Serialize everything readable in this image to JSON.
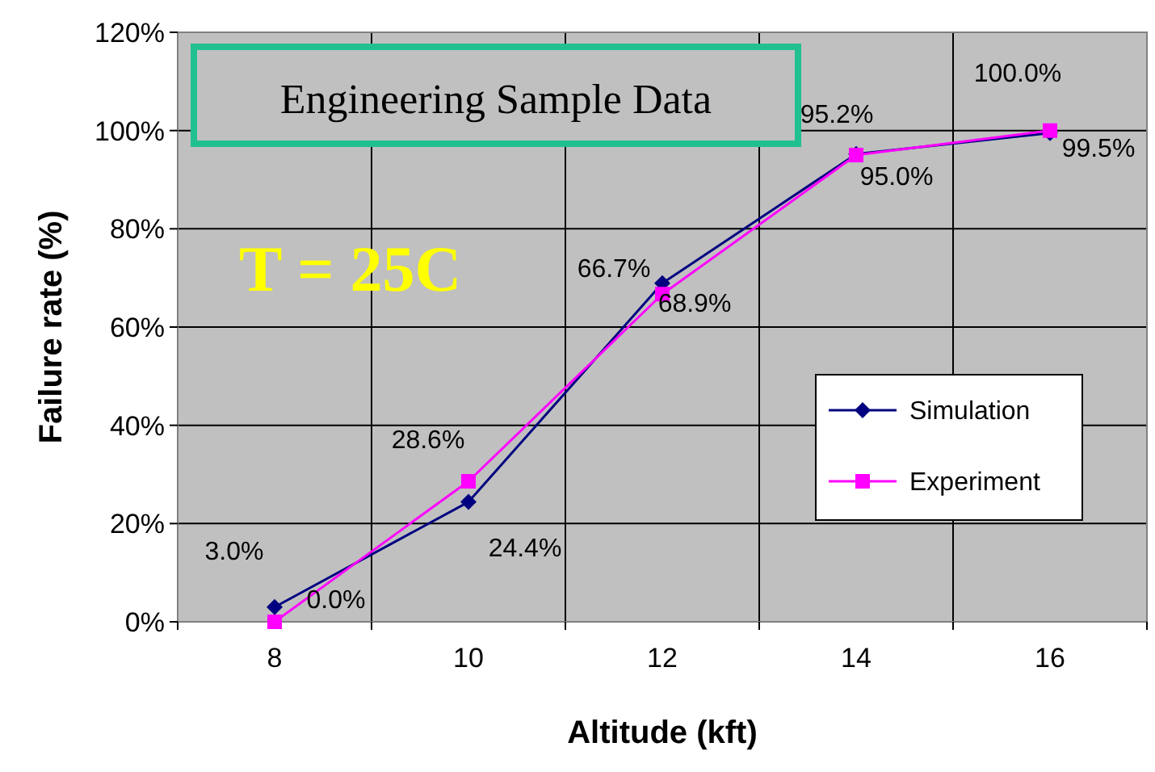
{
  "chart_data": {
    "type": "line",
    "xlabel": "Altitude (kft)",
    "ylabel": "Failure rate (%)",
    "categories": [
      "8",
      "10",
      "12",
      "14",
      "16"
    ],
    "ylim": [
      0,
      120
    ],
    "yticks": [
      {
        "value": 0,
        "label": "0%"
      },
      {
        "value": 20,
        "label": "20%"
      },
      {
        "value": 40,
        "label": "40%"
      },
      {
        "value": 60,
        "label": "60%"
      },
      {
        "value": 80,
        "label": "80%"
      },
      {
        "value": 100,
        "label": "100%"
      },
      {
        "value": 120,
        "label": "120%"
      }
    ],
    "grid": true,
    "legend": "right",
    "annotations": [
      "Engineering Sample Data",
      "T = 25C"
    ],
    "series": [
      {
        "name": "Simulation",
        "color": "#000080",
        "marker": "diamond",
        "values": [
          3.0,
          24.4,
          68.9,
          95.2,
          99.5
        ],
        "value_labels": [
          "3.0%",
          "24.4%",
          "68.9%",
          "95.2%",
          "99.5%"
        ]
      },
      {
        "name": "Experiment",
        "color": "#ff00ff",
        "marker": "square",
        "values": [
          0.0,
          28.6,
          66.7,
          95.0,
          100.0
        ],
        "value_labels": [
          "0.0%",
          "28.6%",
          "66.7%",
          "95.0%",
          "100.0%"
        ]
      }
    ]
  }
}
